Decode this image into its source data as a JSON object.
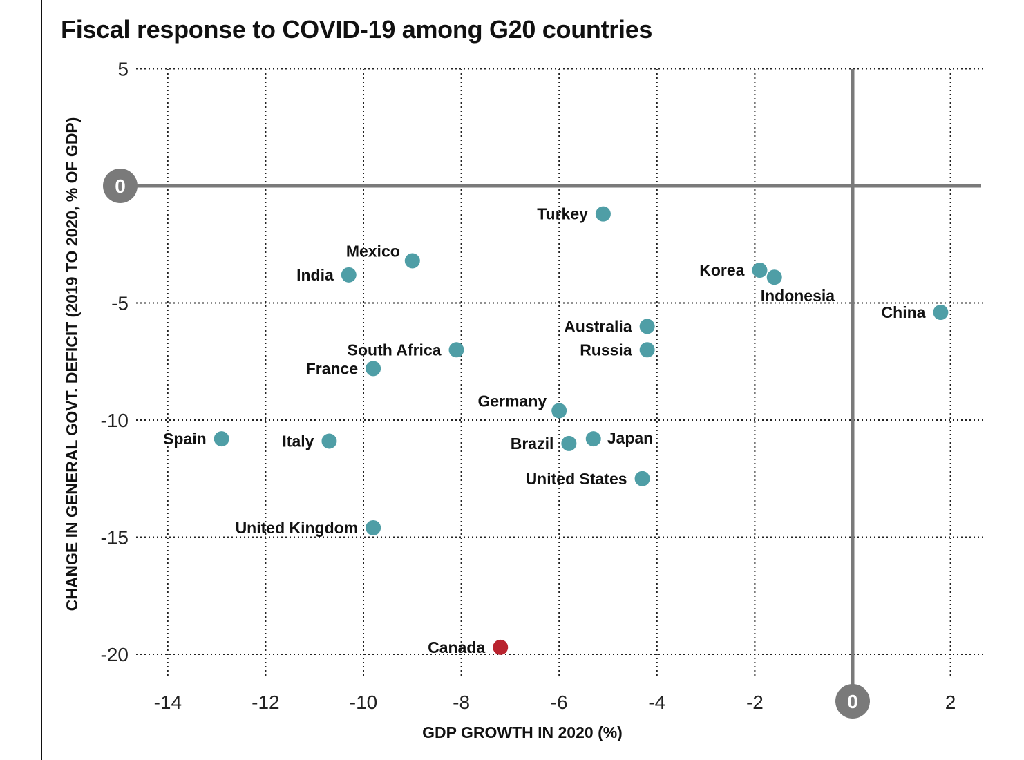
{
  "chart_data": {
    "type": "scatter",
    "title": "Fiscal response to COVID-19 among G20 countries",
    "xlabel": "GDP GROWTH IN 2020 (%)",
    "ylabel": "CHANGE IN GENERAL GOVT. DEFICIT (2019 TO 2020, % OF GDP)",
    "xlim": [
      -14.8,
      2.7
    ],
    "ylim": [
      -21.1,
      5
    ],
    "xticks": [
      -14,
      -12,
      -10,
      -8,
      -6,
      -4,
      -2,
      0,
      2
    ],
    "yticks": [
      5,
      0,
      -5,
      -10,
      -15,
      -20
    ],
    "grid": true,
    "colors": {
      "default": "#4f9ea6",
      "highlight": "#b9232e",
      "zero_line": "#7a7a7a"
    },
    "points": [
      {
        "name": "Turkey",
        "x": -5.1,
        "y": -1.2,
        "label_pos": "left"
      },
      {
        "name": "Mexico",
        "x": -9.0,
        "y": -3.2,
        "label_pos": "upper-left"
      },
      {
        "name": "India",
        "x": -10.3,
        "y": -3.8,
        "label_pos": "left"
      },
      {
        "name": "Korea",
        "x": -1.9,
        "y": -3.6,
        "label_pos": "left"
      },
      {
        "name": "Indonesia",
        "x": -1.6,
        "y": -3.9,
        "label_pos": "below"
      },
      {
        "name": "China",
        "x": 1.8,
        "y": -5.4,
        "label_pos": "left"
      },
      {
        "name": "Australia",
        "x": -4.2,
        "y": -6.0,
        "label_pos": "left"
      },
      {
        "name": "Russia",
        "x": -4.2,
        "y": -7.0,
        "label_pos": "left"
      },
      {
        "name": "South Africa",
        "x": -8.1,
        "y": -7.0,
        "label_pos": "left"
      },
      {
        "name": "France",
        "x": -9.8,
        "y": -7.8,
        "label_pos": "left"
      },
      {
        "name": "Germany",
        "x": -6.0,
        "y": -9.6,
        "label_pos": "upper-left"
      },
      {
        "name": "Spain",
        "x": -12.9,
        "y": -10.8,
        "label_pos": "left"
      },
      {
        "name": "Italy",
        "x": -10.7,
        "y": -10.9,
        "label_pos": "left"
      },
      {
        "name": "Japan",
        "x": -5.3,
        "y": -10.8,
        "label_pos": "right"
      },
      {
        "name": "Brazil",
        "x": -5.8,
        "y": -11.0,
        "label_pos": "left"
      },
      {
        "name": "United States",
        "x": -4.3,
        "y": -12.5,
        "label_pos": "left"
      },
      {
        "name": "United Kingdom",
        "x": -9.8,
        "y": -14.6,
        "label_pos": "left"
      },
      {
        "name": "Canada",
        "x": -7.2,
        "y": -19.7,
        "label_pos": "left",
        "highlight": true
      }
    ]
  }
}
